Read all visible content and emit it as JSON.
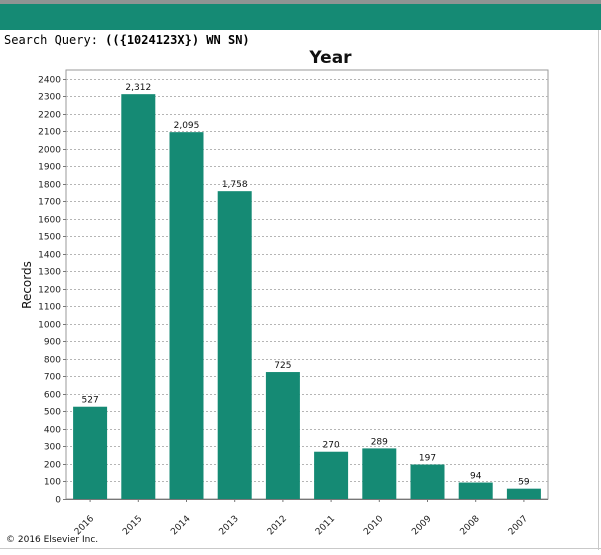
{
  "header": {
    "bar_color": "#158a74"
  },
  "query": {
    "label": "Search Query:",
    "value": "(({1024123X}) WN SN)"
  },
  "chart_data": {
    "type": "bar",
    "title": "Year",
    "xlabel": "",
    "ylabel": "Records",
    "categories": [
      "2016",
      "2015",
      "2014",
      "2013",
      "2012",
      "2011",
      "2010",
      "2009",
      "2008",
      "2007"
    ],
    "values": [
      527,
      2312,
      2095,
      1758,
      725,
      270,
      289,
      197,
      94,
      59
    ],
    "value_labels": [
      "527",
      "2,312",
      "2,095",
      "1,758",
      "725",
      "270",
      "289",
      "197",
      "94",
      "59"
    ],
    "ylim": [
      0,
      2450
    ],
    "yticks": [
      0,
      100,
      200,
      300,
      400,
      500,
      600,
      700,
      800,
      900,
      1000,
      1100,
      1200,
      1300,
      1400,
      1500,
      1600,
      1700,
      1800,
      1900,
      2000,
      2100,
      2200,
      2300,
      2400
    ],
    "grid": true,
    "bar_color": "#158a74"
  },
  "footer": {
    "copyright": "© 2016 Elsevier Inc."
  }
}
